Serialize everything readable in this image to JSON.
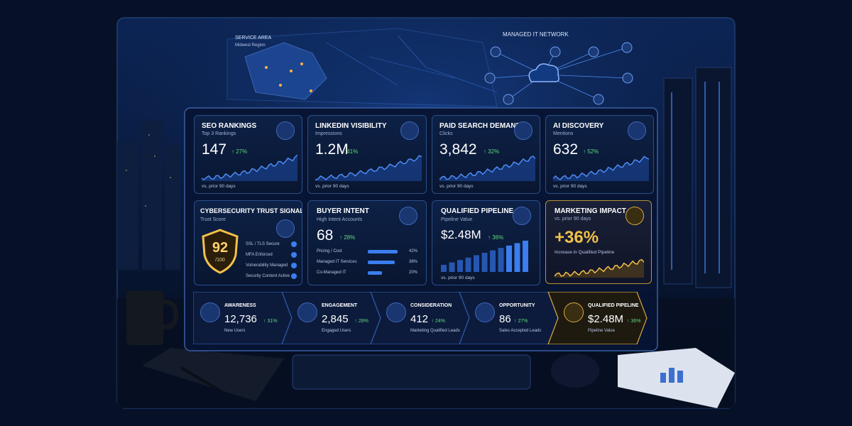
{
  "map": {
    "title": "SERVICE AREA",
    "subtitle": "Midwest Region"
  },
  "network": {
    "title": "MANAGED IT NETWORK"
  },
  "cards": [
    {
      "title": "SEO RANKINGS",
      "subtitle": "Top 3 Rankings",
      "value": "147",
      "change": "↑ 27%",
      "footer": "vs. prior 90 days"
    },
    {
      "title": "LINKEDIN VISIBILITY",
      "subtitle": "Impressions",
      "value": "1.2M",
      "change": "↑ 41%",
      "footer": "vs. prior 90 days"
    },
    {
      "title": "PAID SEARCH DEMAND",
      "subtitle": "Clicks",
      "value": "3,842",
      "change": "↑ 32%",
      "footer": "vs. prior 90 days"
    },
    {
      "title": "AI DISCOVERY",
      "subtitle": "Mentions",
      "value": "632",
      "change": "↑ 52%",
      "footer": "vs. prior 90 days"
    }
  ],
  "trust": {
    "title": "CYBERSECURITY TRUST SIGNALS",
    "subtitle": "Trust Score",
    "score": "92",
    "scale": "/100",
    "items": [
      "SSL / TLS Secure",
      "MFA Enforced",
      "Vulnerability Managed",
      "Security Content Active"
    ]
  },
  "intent": {
    "title": "BUYER INTENT",
    "subtitle": "High Intent Accounts",
    "value": "68",
    "change": "↑ 28%",
    "rows": [
      {
        "label": "Pricing / Cost",
        "value": 42,
        "value_label": "42%"
      },
      {
        "label": "Managed IT Services",
        "value": 38,
        "value_label": "38%"
      },
      {
        "label": "Co-Managed IT",
        "value": 20,
        "value_label": "20%"
      }
    ]
  },
  "pipeline": {
    "title": "QUALIFIED PIPELINE",
    "subtitle": "Pipeline Value",
    "value": "$2.48M",
    "change": "↑ 36%",
    "footer": "vs. prior 90 days"
  },
  "impact": {
    "title": "MARKETING IMPACT",
    "subtitle": "vs. prior 90 days",
    "value": "+36%",
    "caption": "Increase in Qualified Pipeline"
  },
  "funnel": [
    {
      "title": "AWARENESS",
      "value": "12,736",
      "change": "↑ 31%",
      "caption": "New Users"
    },
    {
      "title": "ENGAGEMENT",
      "value": "2,845",
      "change": "↑ 28%",
      "caption": "Engaged Users"
    },
    {
      "title": "CONSIDERATION",
      "value": "412",
      "change": "↑ 24%",
      "caption": "Marketing Qualified Leads"
    },
    {
      "title": "OPPORTUNITY",
      "value": "86",
      "change": "↑ 27%",
      "caption": "Sales Accepted Leads"
    },
    {
      "title": "QUALIFIED PIPELINE",
      "value": "$2.48M",
      "change": "↑ 36%",
      "caption": "Pipeline Value"
    }
  ]
}
